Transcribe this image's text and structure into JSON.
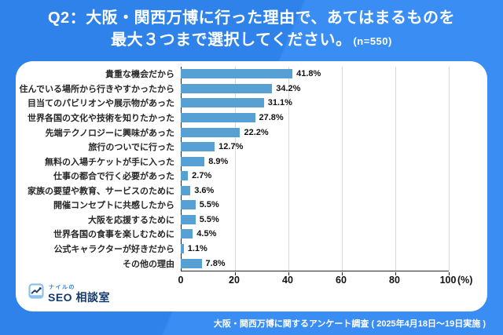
{
  "title": {
    "line1": "Q2：大阪・関西万博に行った理由で、あてはまるものを",
    "line2": "最大３つまで選択してください。",
    "sample_size": "(n=550)"
  },
  "chart_data": {
    "type": "bar",
    "orientation": "horizontal",
    "title": "Q2：大阪・関西万博に行った理由で、あてはまるものを最大３つまで選択してください。(n=550)",
    "categories": [
      "貴重な機会だから",
      "住んでいる場所から行きやすかったから",
      "目当てのパビリオンや展示物があった",
      "世界各国の文化や技術を知りたかった",
      "先端テクノロジーに興味があった",
      "旅行のついでに行った",
      "無料の入場チケットが手に入った",
      "仕事の都合で行く必要があった",
      "家族の要望や教育、サービスのために",
      "開催コンセプトに共感したから",
      "大阪を応援するために",
      "世界各国の食事を楽しむために",
      "公式キャラクターが好きだから",
      "その他の理由"
    ],
    "values": [
      41.8,
      34.2,
      31.1,
      27.8,
      22.2,
      12.7,
      8.9,
      2.7,
      3.6,
      5.5,
      5.5,
      4.5,
      1.1,
      7.8
    ],
    "value_suffix": "%",
    "xlim": [
      0,
      100
    ],
    "x_ticks": [
      0,
      20,
      40,
      60,
      80,
      100
    ],
    "x_unit_label": "(%)",
    "bar_color": "#56A0D3",
    "grid": true,
    "legend": false
  },
  "logo": {
    "tagline": "ナイルの",
    "brand_primary": "SEO",
    "brand_secondary": "相談室",
    "icon": "trend-up-chart-icon"
  },
  "footer": {
    "note": "大阪・関西万博に関するアンケート調査 ( 2025年4月18日〜19日実施 )"
  },
  "colors": {
    "background": "#2F85ED",
    "card": "#FFFFFF",
    "bar": "#56A0D3",
    "title_text": "#FFFFFF",
    "axis": "#262626",
    "gridline": "#D8D8D8",
    "logo_navy": "#143A6E",
    "logo_blue": "#2D7CD9",
    "logo_light_blue": "#8FC0EA"
  }
}
